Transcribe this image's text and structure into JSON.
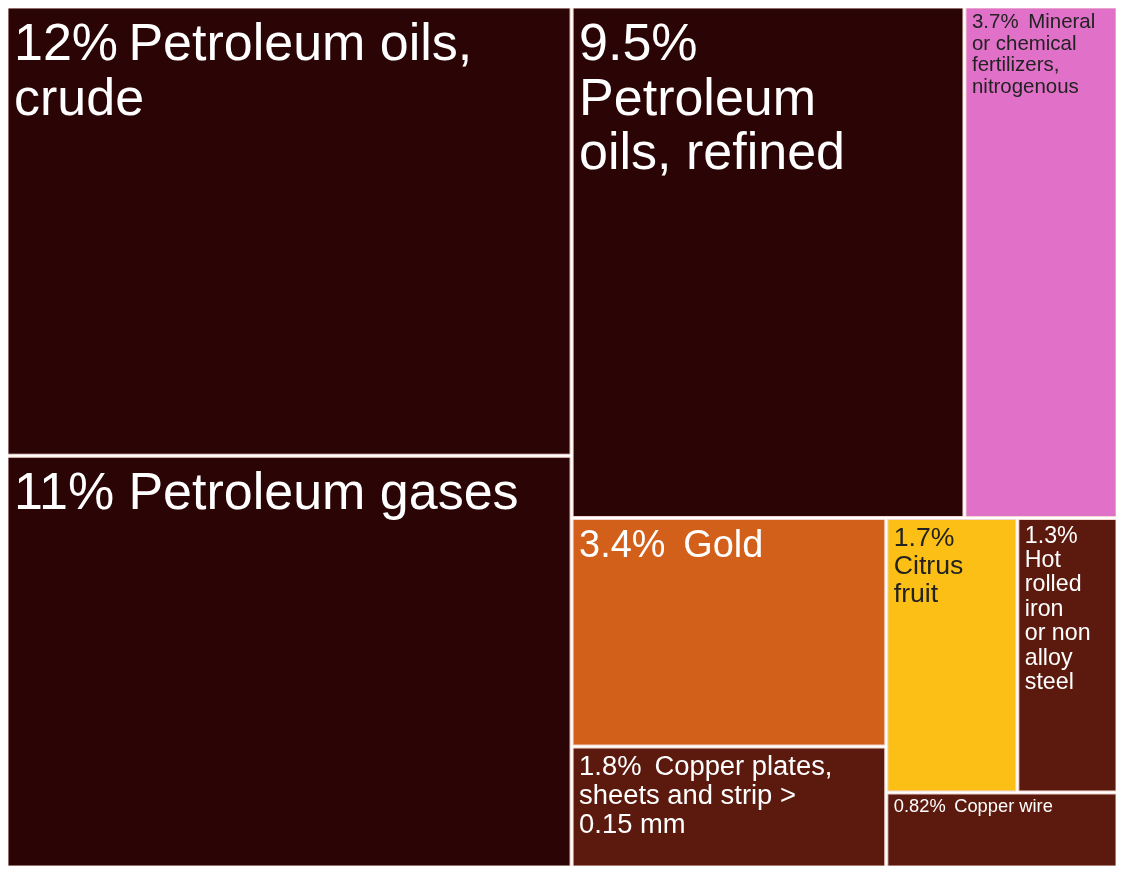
{
  "chart_data": {
    "type": "other",
    "categories": [
      "Petroleum oils, crude",
      "Petroleum gases",
      "Petroleum oils, refined",
      "Mineral or chemical fertilizers, nitrogenous",
      "Gold",
      "Copper plates, sheets and strip > 0.15 mm",
      "Citrus fruit",
      "Hot rolled iron or non alloy steel",
      "Copper wire"
    ],
    "values": [
      12,
      11,
      9.5,
      3.7,
      3.4,
      1.8,
      1.7,
      1.3,
      0.82
    ],
    "value_labels": [
      "12%",
      "11%",
      "9.5%",
      "3.7%",
      "3.4%",
      "1.8%",
      "1.7%",
      "1.3%",
      "0.82%"
    ],
    "colors": [
      "#2b0505",
      "#2b0505",
      "#2b0505",
      "#e070c8",
      "#d2601a",
      "#5c1a0e",
      "#fbbf16",
      "#5c1a0e",
      "#5c1a0e"
    ]
  }
}
